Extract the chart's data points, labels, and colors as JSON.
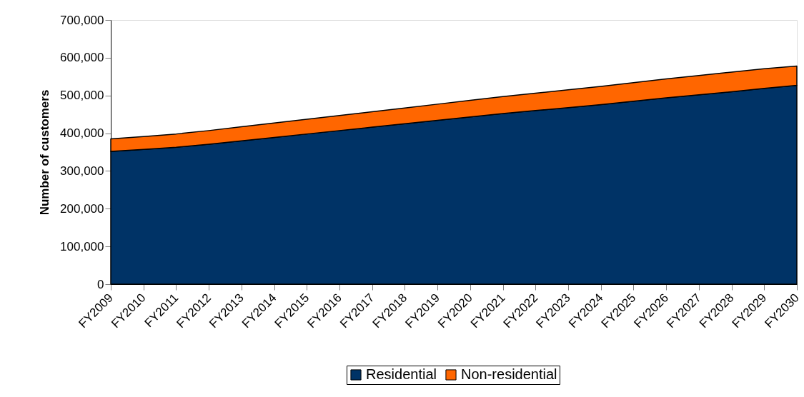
{
  "chart_data": {
    "type": "area",
    "stacked": true,
    "ylabel": "Number of customers",
    "categories": [
      "FY2009",
      "FY2010",
      "FY2011",
      "FY2012",
      "FY2013",
      "FY2014",
      "FY2015",
      "FY2016",
      "FY2017",
      "FY2018",
      "FY2019",
      "FY2020",
      "FY2021",
      "FY2022",
      "FY2023",
      "FY2024",
      "FY2025",
      "FY2026",
      "FY2027",
      "FY2028",
      "FY2029",
      "FY2030"
    ],
    "series": [
      {
        "name": "Residential",
        "color": "#003366",
        "values": [
          352000,
          357000,
          363000,
          371000,
          380000,
          389000,
          398000,
          407000,
          416000,
          425000,
          434000,
          443000,
          452000,
          460000,
          468000,
          476000,
          485000,
          494000,
          502000,
          510000,
          519000,
          527000
        ]
      },
      {
        "name": "Non-residential",
        "color": "#ff6600",
        "values": [
          33000,
          34000,
          35000,
          36000,
          37000,
          38000,
          39000,
          40000,
          41000,
          42000,
          43000,
          44000,
          45000,
          46000,
          47000,
          48000,
          49000,
          50000,
          51000,
          52000,
          52000,
          51000
        ]
      }
    ],
    "ylim": [
      0,
      700000
    ],
    "yticks": [
      0,
      {
        "value": 100000,
        "label": "100,000"
      },
      {
        "value": 200000,
        "label": "200,000"
      },
      {
        "value": 300000,
        "label": "300,000"
      },
      {
        "value": 400000,
        "label": "400,000"
      },
      {
        "value": 500000,
        "label": "500,000"
      },
      {
        "value": 600000,
        "label": "600,000"
      },
      {
        "value": 700000,
        "label": "700,000"
      }
    ],
    "grid": false,
    "legend": "bottom"
  }
}
